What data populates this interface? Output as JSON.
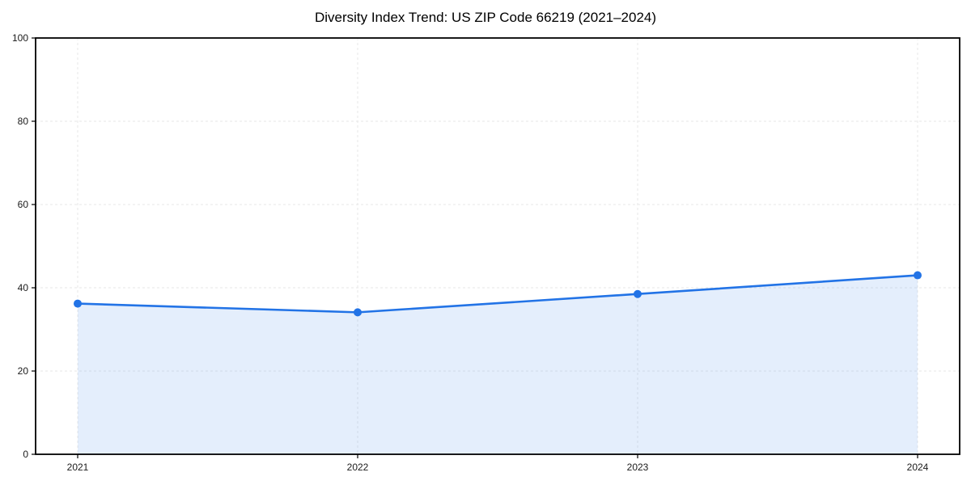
{
  "figure": {
    "background": "#ffffff"
  },
  "chart_data": {
    "type": "area",
    "title": "Diversity Index Trend: US ZIP Code 66219 (2021–2024)",
    "x": [
      "2021",
      "2022",
      "2023",
      "2024"
    ],
    "series": [
      {
        "name": "Diversity Index",
        "values": [
          36.2,
          34.1,
          38.5,
          43.0
        ]
      }
    ],
    "xlabel": "",
    "ylabel": "",
    "ylim": [
      0,
      100
    ],
    "yticks": [
      0,
      20,
      40,
      60,
      80,
      100
    ],
    "grid": "dashed-both-axes",
    "legend": "none",
    "marker": "circle",
    "colors": {
      "line": "#2273e6",
      "marker": "#2273e6",
      "area_fill": "rgba(34,115,230,0.12)",
      "gridline": "#e7e7e7",
      "axis": "#000000",
      "tick_label": "#1a1a1a",
      "title": "#000000"
    }
  }
}
